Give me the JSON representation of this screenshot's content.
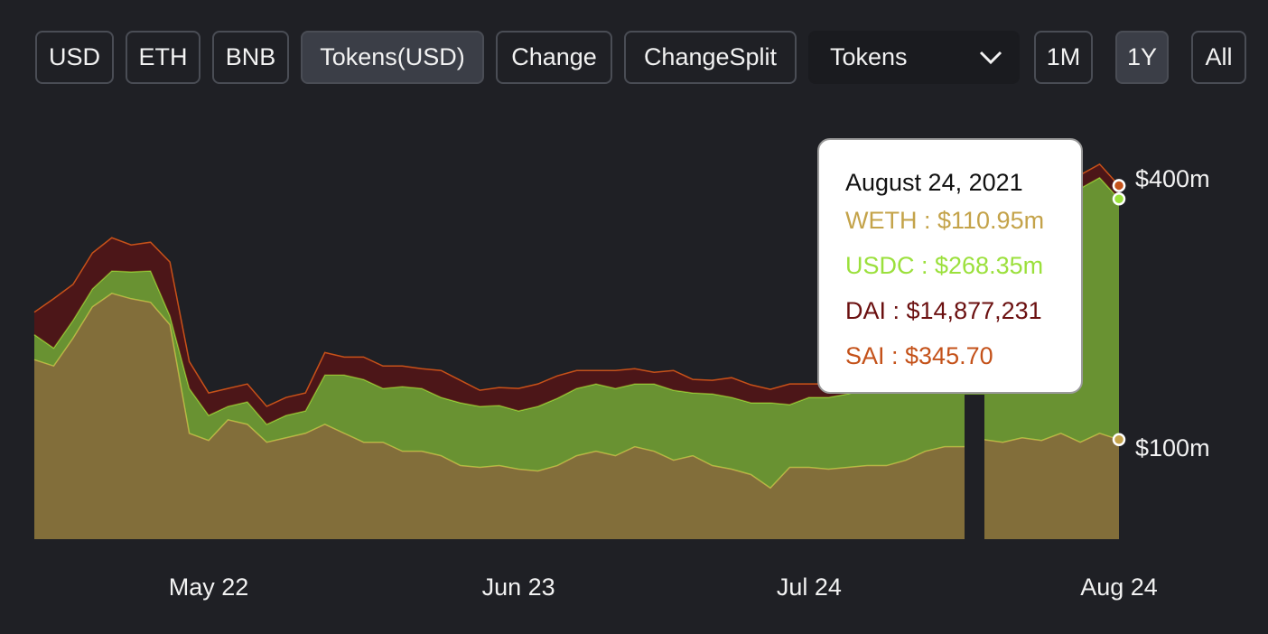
{
  "controls": {
    "buttons": [
      "USD",
      "ETH",
      "BNB",
      "Tokens(USD)",
      "Change",
      "ChangeSplit"
    ],
    "dropdown": "Tokens",
    "ranges": [
      "1M",
      "1Y",
      "All"
    ]
  },
  "chart_data": {
    "type": "stacked-area",
    "categories": [
      null,
      null,
      null,
      null,
      null,
      null,
      null,
      null,
      null,
      "May 22",
      null,
      null,
      null,
      null,
      null,
      null,
      null,
      null,
      null,
      null,
      null,
      null,
      null,
      null,
      null,
      "Jun 23",
      null,
      null,
      null,
      null,
      null,
      null,
      null,
      null,
      null,
      null,
      null,
      null,
      null,
      null,
      "Jul 24",
      null,
      null,
      null,
      null,
      null,
      null,
      null,
      null,
      null,
      null,
      null,
      null,
      null,
      null,
      null,
      "Aug 24"
    ],
    "series": [
      {
        "name": "WETH",
        "color": "#c4a34a",
        "values": [
          200,
          193,
          224,
          259,
          274,
          268,
          264,
          239,
          118,
          110,
          133,
          128,
          108,
          113,
          118,
          128,
          118,
          108,
          108,
          98,
          98,
          93,
          82,
          80,
          82,
          78,
          76,
          82,
          93,
          98,
          93,
          103,
          98,
          88,
          93,
          82,
          78,
          72,
          57,
          80,
          80,
          78,
          80,
          82,
          82,
          88,
          98,
          103,
          103,
          111,
          108,
          113,
          110,
          118,
          108,
          118,
          110.95
        ]
      },
      {
        "name": "USDC",
        "color": "#9be03c",
        "values": [
          28,
          20,
          20,
          20,
          25,
          30,
          35,
          10,
          50,
          28,
          15,
          25,
          20,
          25,
          25,
          55,
          65,
          70,
          60,
          72,
          70,
          65,
          70,
          68,
          67,
          65,
          72,
          75,
          75,
          75,
          75,
          70,
          75,
          78,
          70,
          80,
          80,
          80,
          95,
          70,
          78,
          80,
          82,
          85,
          90,
          95,
          100,
          110,
          120,
          280,
          280,
          282,
          285,
          280,
          283,
          285,
          268.35
        ]
      },
      {
        "name": "DAI",
        "color": "#6b1010",
        "values": [
          25,
          55,
          40,
          40,
          37,
          30,
          32,
          60,
          30,
          25,
          20,
          20,
          20,
          20,
          20,
          25,
          20,
          25,
          25,
          23,
          22,
          30,
          25,
          18,
          20,
          25,
          25,
          25,
          20,
          15,
          20,
          17,
          13,
          22,
          15,
          15,
          22,
          20,
          15,
          23,
          15,
          15,
          15,
          15,
          15,
          15,
          15,
          15,
          15,
          15,
          15,
          15,
          15,
          15,
          15,
          15,
          14.877231
        ]
      },
      {
        "name": "SAI",
        "color": "#c4521a",
        "values": [
          0.0003,
          0.0003,
          0.0003,
          0.0003,
          0.0003,
          0.0003,
          0.0003,
          0.0003,
          0.0003,
          0.0003,
          0.0003,
          0.0003,
          0.0003,
          0.0003,
          0.0003,
          0.0003,
          0.0003,
          0.0003,
          0.0003,
          0.0003,
          0.0003,
          0.0003,
          0.0003,
          0.0003,
          0.0003,
          0.0003,
          0.0003,
          0.0003,
          0.0003,
          0.0003,
          0.0003,
          0.0003,
          0.0003,
          0.0003,
          0.0003,
          0.0003,
          0.0003,
          0.0003,
          0.0003,
          0.0003,
          0.0003,
          0.0003,
          0.0003,
          0.0003,
          0.0003,
          0.0003,
          0.0003,
          0.0003,
          0.0003,
          0.0003,
          0.0003,
          0.0003,
          0.0003,
          0.0003,
          0.0003,
          0.0003,
          0.0003457
        ]
      }
    ],
    "ylim": [
      0,
      450
    ],
    "yticks": [
      {
        "value": 100,
        "label": "$100m"
      },
      {
        "value": 400,
        "label": "$400m"
      }
    ],
    "tooltip": {
      "title": "August 24, 2021",
      "items": [
        "WETH : $110.95m",
        "USDC : $268.35m",
        "DAI : $14,877,231",
        "SAI : $345.70"
      ]
    }
  }
}
